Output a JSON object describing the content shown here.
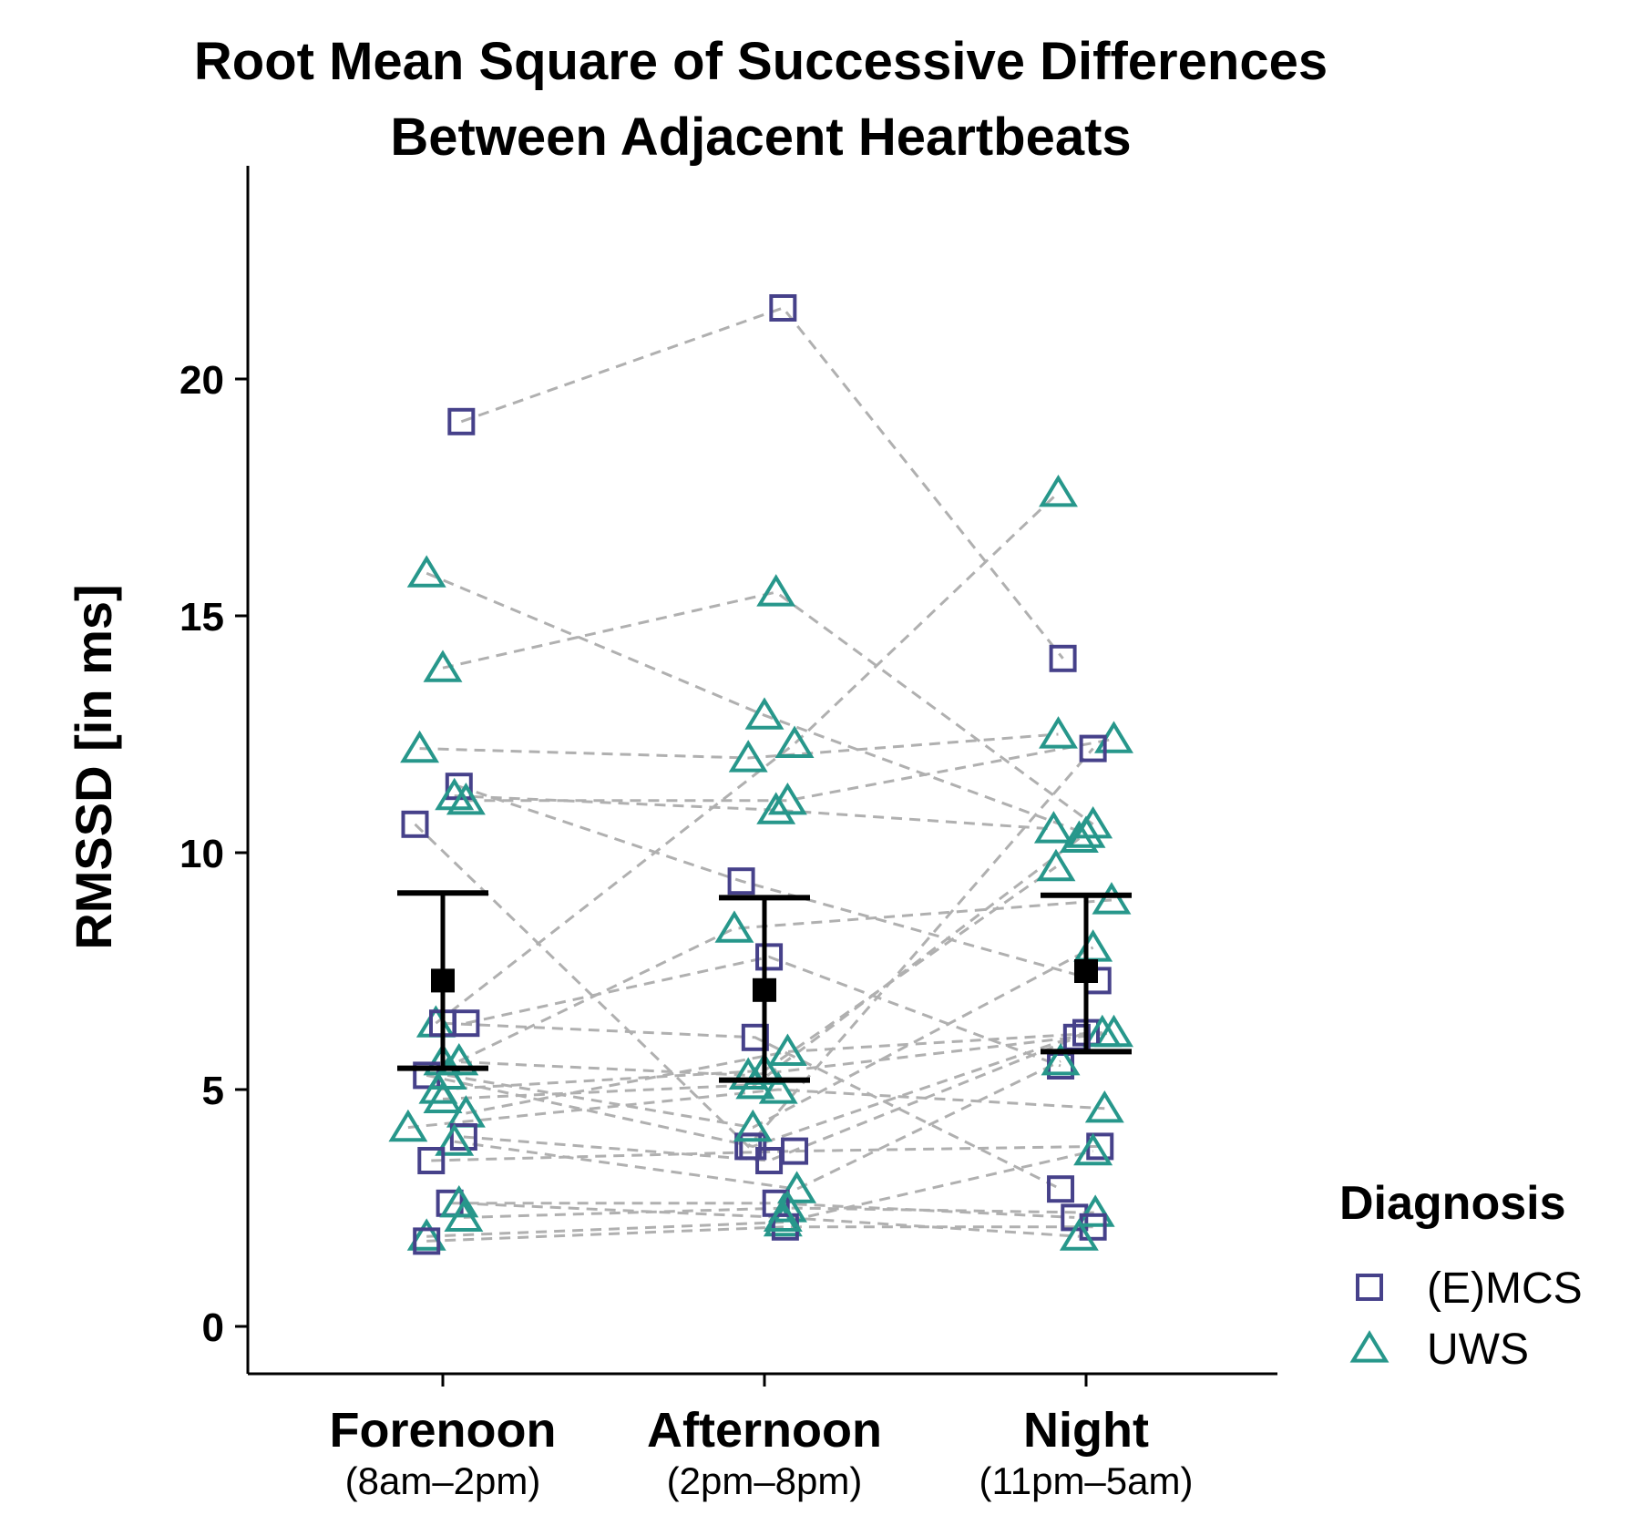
{
  "chart_data": {
    "type": "scatter",
    "title_lines": [
      "Root Mean Square of Successive Differences",
      "Between Adjacent Heartbeats"
    ],
    "ylabel": "RMSSD [in ms]",
    "ylim": [
      -1,
      24.5
    ],
    "yticks": [
      {
        "value": 0,
        "label": "0"
      },
      {
        "value": 5,
        "label": "5"
      },
      {
        "value": 10,
        "label": "10"
      },
      {
        "value": 15,
        "label": "15"
      },
      {
        "value": 20,
        "label": "20"
      }
    ],
    "categories": [
      {
        "label": "Forenoon",
        "sublabel": "(8am–2pm)"
      },
      {
        "label": "Afternoon",
        "sublabel": "(2pm–8pm)"
      },
      {
        "label": "Night",
        "sublabel": "(11pm–5am)"
      }
    ],
    "legend": {
      "title": "Diagnosis",
      "position": "right",
      "items": [
        {
          "label": "(E)MCS",
          "marker": "square",
          "color": "#46418a"
        },
        {
          "label": "UWS",
          "marker": "triangle",
          "color": "#27978b"
        }
      ]
    },
    "summary": {
      "marker_color": "#000000",
      "connector_color": "#b0b0b0",
      "means": [
        7.3,
        7.1,
        7.5
      ],
      "lower": [
        5.45,
        5.2,
        5.8
      ],
      "upper": [
        9.15,
        9.05,
        9.1
      ]
    },
    "subjects": [
      {
        "group": "(E)MCS",
        "values": [
          19.1,
          21.5,
          14.1
        ],
        "jitter": [
          0.08,
          0.08,
          -0.1
        ]
      },
      {
        "group": "UWS",
        "values": [
          15.9,
          12.9,
          10.4
        ],
        "jitter": [
          -0.07,
          0.0,
          0.0
        ]
      },
      {
        "group": "UWS",
        "values": [
          13.9,
          15.5,
          10.6
        ],
        "jitter": [
          0.0,
          0.05,
          0.03
        ]
      },
      {
        "group": "UWS",
        "values": [
          12.2,
          12.0,
          12.5
        ],
        "jitter": [
          -0.1,
          -0.07,
          -0.12
        ]
      },
      {
        "group": "(E)MCS",
        "values": [
          11.4,
          9.4,
          7.3
        ],
        "jitter": [
          0.07,
          -0.1,
          0.05
        ]
      },
      {
        "group": "UWS",
        "values": [
          11.2,
          10.9,
          10.5
        ],
        "jitter": [
          0.05,
          0.05,
          -0.14
        ]
      },
      {
        "group": "UWS",
        "values": [
          11.1,
          11.1,
          12.4
        ],
        "jitter": [
          0.1,
          0.1,
          0.12
        ]
      },
      {
        "group": "(E)MCS",
        "values": [
          10.6,
          3.8,
          12.2
        ],
        "jitter": [
          -0.12,
          -0.07,
          0.03
        ]
      },
      {
        "group": "UWS",
        "values": [
          6.4,
          12.3,
          17.6
        ],
        "jitter": [
          -0.03,
          0.13,
          -0.12
        ]
      },
      {
        "group": "(E)MCS",
        "values": [
          6.4,
          7.8,
          5.5
        ],
        "jitter": [
          0.1,
          0.02,
          -0.11
        ]
      },
      {
        "group": "(E)MCS",
        "values": [
          6.4,
          6.1,
          2.9
        ],
        "jitter": [
          0.0,
          -0.04,
          -0.11
        ]
      },
      {
        "group": "UWS",
        "values": [
          5.6,
          8.4,
          9.0
        ],
        "jitter": [
          0.07,
          -0.13,
          0.11
        ]
      },
      {
        "group": "UWS",
        "values": [
          5.6,
          5.3,
          6.2
        ],
        "jitter": [
          0.0,
          -0.07,
          0.12
        ]
      },
      {
        "group": "(E)MCS",
        "values": [
          5.3,
          3.8,
          6.2
        ],
        "jitter": [
          -0.07,
          -0.05,
          0.0
        ]
      },
      {
        "group": "UWS",
        "values": [
          5.3,
          4.2,
          8.0
        ],
        "jitter": [
          0.02,
          -0.05,
          0.03
        ]
      },
      {
        "group": "UWS",
        "values": [
          5.0,
          5.4,
          9.7
        ],
        "jitter": [
          -0.02,
          0.0,
          -0.13
        ]
      },
      {
        "group": "UWS",
        "values": [
          4.8,
          5.1,
          10.3
        ],
        "jitter": [
          0.0,
          -0.04,
          -0.03
        ]
      },
      {
        "group": "UWS",
        "values": [
          4.5,
          5.8,
          6.2
        ],
        "jitter": [
          0.1,
          0.1,
          0.07
        ]
      },
      {
        "group": "UWS",
        "values": [
          4.2,
          5.0,
          4.6
        ],
        "jitter": [
          -0.15,
          0.06,
          0.08
        ]
      },
      {
        "group": "(E)MCS",
        "values": [
          4.0,
          3.5,
          6.1
        ],
        "jitter": [
          0.09,
          0.02,
          -0.04
        ]
      },
      {
        "group": "UWS",
        "values": [
          3.9,
          2.9,
          5.6
        ],
        "jitter": [
          0.05,
          0.14,
          -0.11
        ]
      },
      {
        "group": "(E)MCS",
        "values": [
          3.5,
          3.7,
          3.8
        ],
        "jitter": [
          -0.05,
          0.13,
          0.06
        ]
      },
      {
        "group": "(E)MCS",
        "values": [
          2.6,
          2.6,
          2.3
        ],
        "jitter": [
          0.03,
          0.05,
          -0.05
        ]
      },
      {
        "group": "UWS",
        "values": [
          2.3,
          2.5,
          2.4
        ],
        "jitter": [
          0.09,
          0.1,
          0.04
        ]
      },
      {
        "group": "UWS",
        "values": [
          1.9,
          2.2,
          3.7
        ],
        "jitter": [
          -0.07,
          0.08,
          0.03
        ]
      },
      {
        "group": "(E)MCS",
        "values": [
          1.8,
          2.1,
          2.1
        ],
        "jitter": [
          -0.07,
          0.09,
          0.03
        ]
      },
      {
        "group": "UWS",
        "values": [
          2.6,
          2.3,
          1.9
        ],
        "jitter": [
          0.07,
          0.08,
          -0.03
        ]
      }
    ]
  }
}
